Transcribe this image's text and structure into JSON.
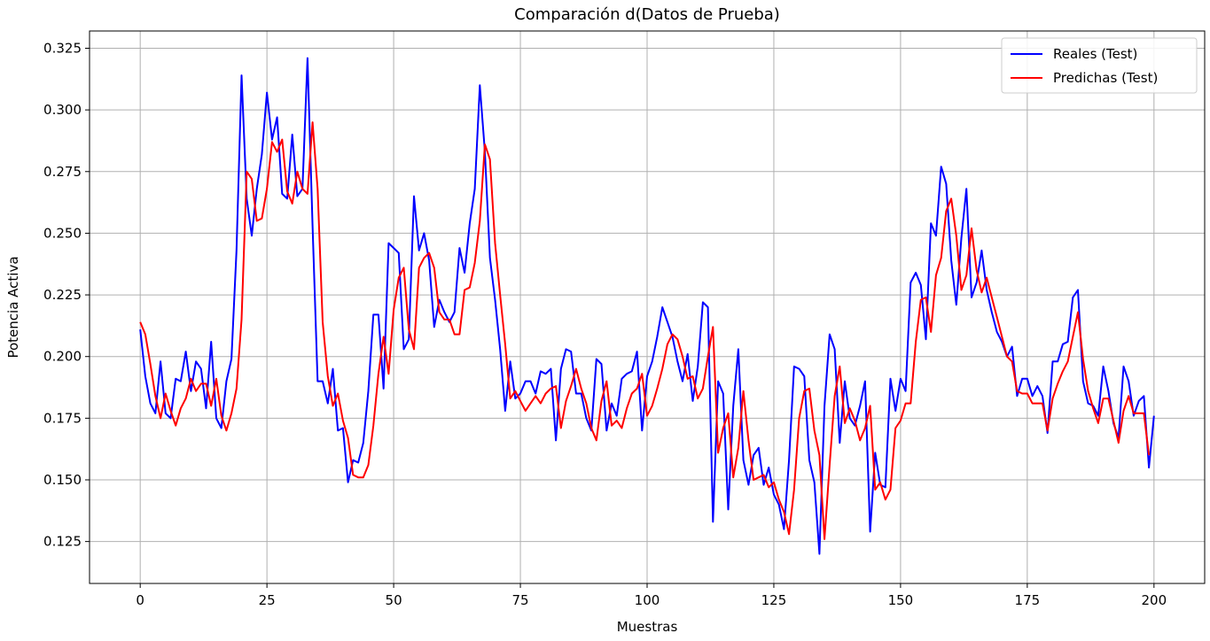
{
  "chart_data": {
    "type": "line",
    "title": "Comparación d(Datos de Prueba)",
    "xlabel": "Muestras",
    "ylabel": "Potencia Activa",
    "xlim": [
      -10,
      210
    ],
    "ylim": [
      0.108,
      0.332
    ],
    "xticks": [
      0,
      25,
      50,
      75,
      100,
      125,
      150,
      175,
      200
    ],
    "yticks": [
      0.125,
      0.15,
      0.175,
      0.2,
      0.225,
      0.25,
      0.275,
      0.3,
      0.325
    ],
    "grid": true,
    "legend_position": "top-right",
    "series": [
      {
        "name": "Reales (Test)",
        "color": "#0000ff",
        "values": [
          0.211,
          0.192,
          0.181,
          0.177,
          0.198,
          0.177,
          0.175,
          0.191,
          0.19,
          0.202,
          0.186,
          0.198,
          0.195,
          0.179,
          0.206,
          0.175,
          0.171,
          0.19,
          0.199,
          0.243,
          0.314,
          0.264,
          0.249,
          0.268,
          0.282,
          0.307,
          0.288,
          0.297,
          0.266,
          0.264,
          0.29,
          0.265,
          0.268,
          0.321,
          0.253,
          0.19,
          0.19,
          0.181,
          0.195,
          0.17,
          0.171,
          0.149,
          0.158,
          0.157,
          0.165,
          0.186,
          0.217,
          0.217,
          0.187,
          0.246,
          0.244,
          0.242,
          0.203,
          0.207,
          0.265,
          0.243,
          0.25,
          0.239,
          0.212,
          0.223,
          0.218,
          0.214,
          0.218,
          0.244,
          0.234,
          0.254,
          0.268,
          0.31,
          0.283,
          0.24,
          0.223,
          0.203,
          0.178,
          0.198,
          0.183,
          0.185,
          0.19,
          0.19,
          0.185,
          0.194,
          0.193,
          0.195,
          0.166,
          0.195,
          0.203,
          0.202,
          0.185,
          0.185,
          0.175,
          0.17,
          0.199,
          0.197,
          0.17,
          0.181,
          0.176,
          0.191,
          0.193,
          0.194,
          0.202,
          0.17,
          0.192,
          0.198,
          0.208,
          0.22,
          0.214,
          0.208,
          0.198,
          0.19,
          0.201,
          0.182,
          0.196,
          0.222,
          0.22,
          0.133,
          0.19,
          0.185,
          0.138,
          0.18,
          0.203,
          0.158,
          0.148,
          0.16,
          0.163,
          0.148,
          0.155,
          0.144,
          0.14,
          0.13,
          0.158,
          0.196,
          0.195,
          0.192,
          0.158,
          0.149,
          0.12,
          0.18,
          0.209,
          0.203,
          0.165,
          0.19,
          0.175,
          0.172,
          0.18,
          0.19,
          0.129,
          0.161,
          0.148,
          0.147,
          0.191,
          0.178,
          0.191,
          0.186,
          0.23,
          0.234,
          0.229,
          0.207,
          0.254,
          0.249,
          0.277,
          0.27,
          0.239,
          0.221,
          0.248,
          0.268,
          0.224,
          0.23,
          0.243,
          0.227,
          0.218,
          0.21,
          0.206,
          0.2,
          0.204,
          0.184,
          0.191,
          0.191,
          0.184,
          0.188,
          0.184,
          0.169,
          0.198,
          0.198,
          0.205,
          0.206,
          0.224,
          0.227,
          0.19,
          0.181,
          0.18,
          0.176,
          0.196,
          0.186,
          0.173,
          0.167,
          0.196,
          0.19,
          0.176,
          0.182,
          0.184,
          0.155,
          0.176
        ]
      },
      {
        "name": "Predichas (Test)",
        "color": "#ff0000",
        "values": [
          0.214,
          0.209,
          0.197,
          0.184,
          0.175,
          0.185,
          0.178,
          0.172,
          0.179,
          0.183,
          0.191,
          0.186,
          0.189,
          0.189,
          0.18,
          0.191,
          0.176,
          0.17,
          0.177,
          0.187,
          0.215,
          0.275,
          0.272,
          0.255,
          0.256,
          0.268,
          0.287,
          0.283,
          0.288,
          0.267,
          0.262,
          0.275,
          0.268,
          0.266,
          0.295,
          0.268,
          0.214,
          0.192,
          0.18,
          0.185,
          0.174,
          0.167,
          0.152,
          0.151,
          0.151,
          0.156,
          0.172,
          0.193,
          0.208,
          0.193,
          0.219,
          0.232,
          0.236,
          0.211,
          0.203,
          0.236,
          0.24,
          0.242,
          0.236,
          0.218,
          0.215,
          0.215,
          0.209,
          0.209,
          0.227,
          0.228,
          0.238,
          0.255,
          0.286,
          0.28,
          0.246,
          0.225,
          0.205,
          0.183,
          0.186,
          0.182,
          0.178,
          0.181,
          0.184,
          0.181,
          0.185,
          0.187,
          0.188,
          0.171,
          0.182,
          0.188,
          0.195,
          0.187,
          0.181,
          0.171,
          0.166,
          0.182,
          0.19,
          0.172,
          0.174,
          0.171,
          0.179,
          0.185,
          0.187,
          0.193,
          0.176,
          0.18,
          0.187,
          0.195,
          0.205,
          0.209,
          0.207,
          0.2,
          0.191,
          0.192,
          0.183,
          0.187,
          0.2,
          0.212,
          0.161,
          0.171,
          0.177,
          0.151,
          0.163,
          0.186,
          0.166,
          0.15,
          0.151,
          0.152,
          0.147,
          0.149,
          0.142,
          0.137,
          0.128,
          0.146,
          0.175,
          0.186,
          0.187,
          0.17,
          0.16,
          0.126,
          0.156,
          0.184,
          0.196,
          0.173,
          0.179,
          0.174,
          0.166,
          0.171,
          0.18,
          0.146,
          0.149,
          0.142,
          0.146,
          0.171,
          0.174,
          0.181,
          0.181,
          0.206,
          0.223,
          0.224,
          0.21,
          0.233,
          0.24,
          0.259,
          0.264,
          0.249,
          0.227,
          0.233,
          0.252,
          0.235,
          0.226,
          0.232,
          0.224,
          0.216,
          0.208,
          0.2,
          0.198,
          0.186,
          0.185,
          0.185,
          0.181,
          0.181,
          0.181,
          0.17,
          0.183,
          0.189,
          0.194,
          0.198,
          0.208,
          0.218,
          0.199,
          0.186,
          0.179,
          0.173,
          0.183,
          0.183,
          0.174,
          0.165,
          0.178,
          0.184,
          0.177,
          0.177,
          0.177,
          0.16
        ]
      }
    ]
  }
}
